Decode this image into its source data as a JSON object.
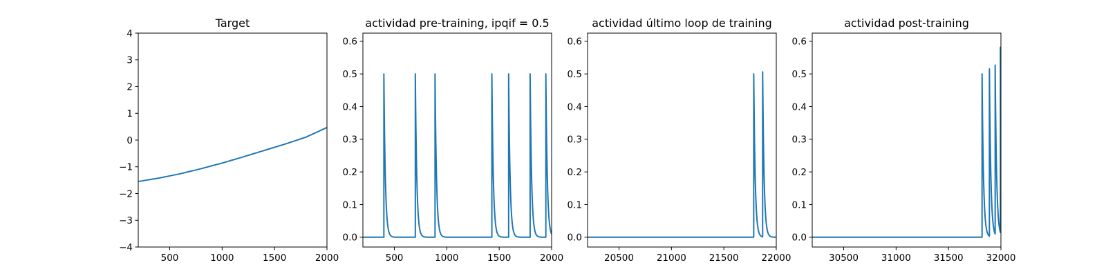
{
  "chart_data": [
    {
      "type": "line",
      "title": "Target",
      "xlim": [
        200,
        2000
      ],
      "ylim": [
        -4,
        4
      ],
      "xticks": [
        500,
        1000,
        1500,
        2000
      ],
      "xtick_labels": [
        "500",
        "1000",
        "1500",
        "2000"
      ],
      "yticks": [
        -4,
        -3,
        -2,
        -1,
        0,
        1,
        2,
        3,
        4
      ],
      "ytick_labels": [
        "−4",
        "−3",
        "−2",
        "−1",
        "0",
        "1",
        "2",
        "3",
        "4"
      ],
      "color": "#1f77b4",
      "series": [
        {
          "x": [
            200,
            400,
            600,
            800,
            1000,
            1200,
            1400,
            1600,
            1800,
            2000
          ],
          "y": [
            -1.55,
            -1.42,
            -1.26,
            -1.07,
            -0.86,
            -0.63,
            -0.39,
            -0.15,
            0.11,
            0.47
          ]
        }
      ]
    },
    {
      "type": "line",
      "title": "actividad pre-training, ipqif = 0.5",
      "xlim": [
        200,
        2000
      ],
      "ylim": [
        -0.03,
        0.625
      ],
      "xticks": [
        500,
        1000,
        1500,
        2000
      ],
      "xtick_labels": [
        "500",
        "1000",
        "1500",
        "2000"
      ],
      "yticks": [
        0,
        0.1,
        0.2,
        0.3,
        0.4,
        0.5,
        0.6
      ],
      "ytick_labels": [
        "0.0",
        "0.1",
        "0.2",
        "0.3",
        "0.4",
        "0.5",
        "0.6"
      ],
      "color": "#1f77b4",
      "spikes": {
        "baseline": 0,
        "tau": 14,
        "times": [
          400,
          700,
          888,
          1430,
          1590,
          1795,
          1945
        ],
        "peaks": [
          0.5,
          0.5,
          0.5,
          0.5,
          0.5,
          0.5,
          0.5
        ]
      }
    },
    {
      "type": "line",
      "title": "actividad último loop de training",
      "xlim": [
        20200,
        22000
      ],
      "ylim": [
        -0.03,
        0.625
      ],
      "xticks": [
        20500,
        21000,
        21500,
        22000
      ],
      "xtick_labels": [
        "20500",
        "21000",
        "21500",
        "22000"
      ],
      "yticks": [
        0,
        0.1,
        0.2,
        0.3,
        0.4,
        0.5,
        0.6
      ],
      "ytick_labels": [
        "0.0",
        "0.1",
        "0.2",
        "0.3",
        "0.4",
        "0.5",
        "0.6"
      ],
      "color": "#1f77b4",
      "spikes": {
        "baseline": 0,
        "tau": 14,
        "times": [
          21785,
          21870
        ],
        "peaks": [
          0.5,
          0.505
        ]
      }
    },
    {
      "type": "line",
      "title": "actividad post-training",
      "xlim": [
        30200,
        32000
      ],
      "ylim": [
        -0.03,
        0.625
      ],
      "xticks": [
        30500,
        31000,
        31500,
        32000
      ],
      "xtick_labels": [
        "30500",
        "31000",
        "31500",
        "32000"
      ],
      "yticks": [
        0,
        0.1,
        0.2,
        0.3,
        0.4,
        0.5,
        0.6
      ],
      "ytick_labels": [
        "0.0",
        "0.1",
        "0.2",
        "0.3",
        "0.4",
        "0.5",
        "0.6"
      ],
      "color": "#1f77b4",
      "spikes": {
        "baseline": 0,
        "tau": 14,
        "times": [
          31820,
          31890,
          31945,
          31995
        ],
        "peaks": [
          0.5,
          0.512,
          0.517,
          0.567
        ]
      }
    }
  ]
}
